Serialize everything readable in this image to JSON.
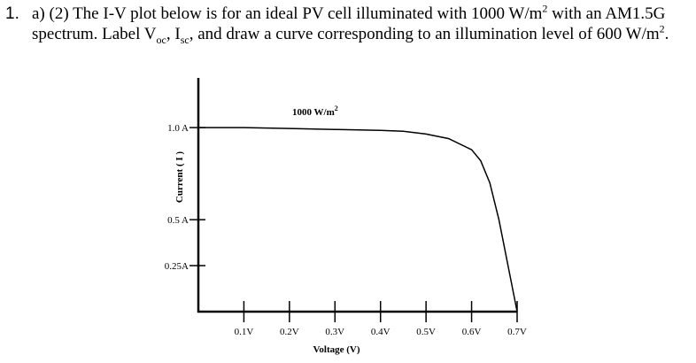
{
  "question": {
    "number": "1.",
    "parts": [
      "a) (2) The I-V plot below is for an ideal PV cell illuminated with 1000 W/m",
      "2",
      " with an AM1.5G spectrum. Label V",
      "oc",
      ", I",
      "sc",
      ", and draw a curve corresponding to an illumination level of 600 W/m",
      "2",
      "."
    ]
  },
  "chart_data": {
    "type": "line",
    "annotation": {
      "parts": [
        "1000 W/m",
        "2"
      ]
    },
    "x_label": "Voltage (V)",
    "y_label": "Current ( I )",
    "x": [
      0,
      0.1,
      0.2,
      0.3,
      0.4,
      0.45,
      0.5,
      0.55,
      0.6,
      0.62,
      0.64,
      0.66,
      0.68,
      0.7
    ],
    "series": [
      {
        "color": "#000000",
        "values": [
          1.0,
          1.0,
          0.995,
          0.99,
          0.985,
          0.98,
          0.965,
          0.94,
          0.88,
          0.82,
          0.7,
          0.5,
          0.25,
          0
        ]
      }
    ],
    "xlim": [
      0,
      0.7
    ],
    "ylim": [
      0,
      1.27
    ],
    "xticks": [
      {
        "value": 0.1,
        "label": "0.1V"
      },
      {
        "value": 0.2,
        "label": "0.2V"
      },
      {
        "value": 0.3,
        "label": "0.3V"
      },
      {
        "value": 0.4,
        "label": "0.4V"
      },
      {
        "value": 0.5,
        "label": "0.5V"
      },
      {
        "value": 0.6,
        "label": "0.6V"
      },
      {
        "value": 0.7,
        "label": "0.7V"
      }
    ],
    "yticks": [
      {
        "value": 1.0,
        "label": "1.0 A"
      },
      {
        "value": 0.5,
        "label": "0.5 A"
      },
      {
        "value": 0.25,
        "label": "0.25A"
      }
    ]
  }
}
